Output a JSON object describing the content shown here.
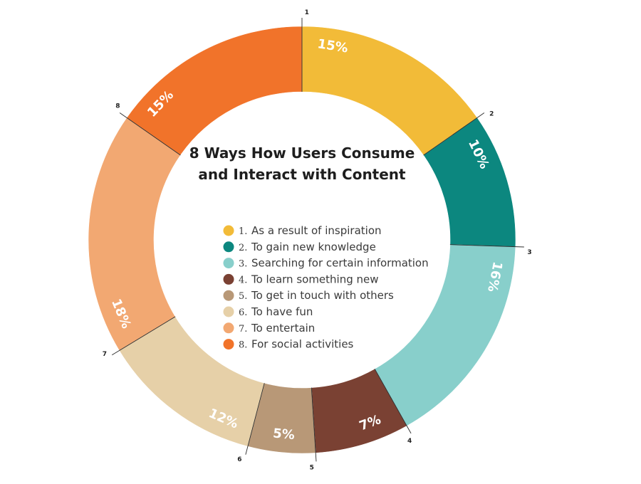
{
  "chart_data": {
    "type": "pie",
    "title_lines": [
      "8 Ways How Users Consume",
      "and Interact with Content"
    ],
    "categories": [
      "As a result of inspiration",
      "To gain new knowledge",
      "Searching for certain information",
      "To learn something new",
      "To get in touch with others",
      "To have fun",
      "To entertain",
      "For social activities"
    ],
    "legend_numbers": [
      "1.",
      "2.",
      "3.",
      "4.",
      "5.",
      "6.",
      "7.",
      "8."
    ],
    "boundary_labels": [
      "1",
      "2",
      "3",
      "4",
      "5",
      "6",
      "7",
      "8"
    ],
    "values": [
      15,
      10,
      16,
      7,
      5,
      12,
      18,
      15
    ],
    "value_labels": [
      "15%",
      "10%",
      "16%",
      "7%",
      "5%",
      "12%",
      "18%",
      "15%"
    ],
    "colors": [
      "#f2bb38",
      "#0c877f",
      "#88cfcb",
      "#7a4133",
      "#b89877",
      "#e6d0a8",
      "#f2a872",
      "#f1732a"
    ],
    "legend_placement": "center"
  }
}
